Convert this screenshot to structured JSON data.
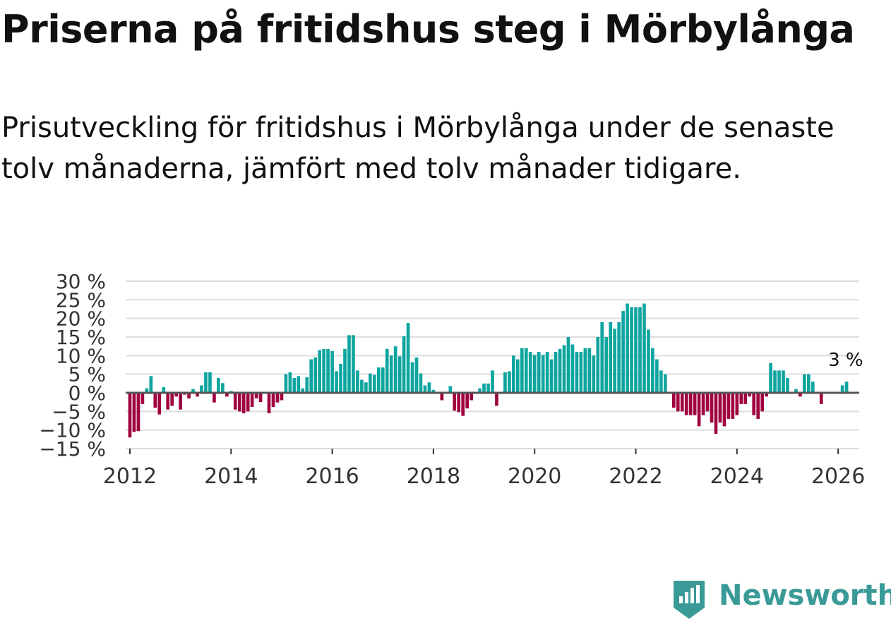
{
  "header": {
    "title": "Priserna på fritidshus steg i Mörbylånga",
    "subtitle": "Prisutveckling för fritidshus i Mörbylånga under de senaste tolv månaderna, jämfört med tolv månader tidigare."
  },
  "brand": {
    "name": "Newsworthy",
    "color": "#3a9a97",
    "icon": "newsworthy-logo-icon"
  },
  "chart_data": {
    "type": "bar",
    "title": "Priserna på fritidshus steg i Mörbylånga",
    "subtitle": "Prisutveckling för fritidshus i Mörbylånga under de senaste tolv månaderna, jämfört med tolv månader tidigare.",
    "xlabel": "",
    "ylabel": "",
    "ylim": [
      -15,
      30
    ],
    "yticks": [
      -15,
      -10,
      -5,
      0,
      5,
      10,
      15,
      20,
      25,
      30
    ],
    "ytick_labels": [
      "−15 %",
      "−10 %",
      "−5 %",
      "0 %",
      "5 %",
      "10 %",
      "15 %",
      "20 %",
      "25 %",
      "30 %"
    ],
    "xlim": [
      "2011-12",
      "2026-06"
    ],
    "xticks": [
      "2012",
      "2014",
      "2016",
      "2018",
      "2020",
      "2022",
      "2024",
      "2026"
    ],
    "grid": true,
    "colors": {
      "positive": "#0ea59f",
      "negative": "#a0003f",
      "grid": "#dddddd",
      "zero": "#555555"
    },
    "annotation": {
      "text": "3 %",
      "month": "2026-02"
    },
    "series": [
      {
        "start": "2012-01",
        "values": [
          -12,
          -10.5,
          -10.3,
          -3,
          1.2,
          4.5,
          -4,
          -5.8,
          1.5,
          -4.5,
          -3.5,
          -1,
          -4.5,
          -0.5,
          -1.5,
          1,
          -1,
          2,
          5.5,
          5.5,
          -2.6,
          4,
          2.6,
          -1,
          0.5,
          -4.5,
          -5,
          -5.5,
          -5,
          -3.8,
          -1.5,
          -2.5,
          0,
          -5.5,
          -3.8,
          -2.6,
          -2,
          5,
          5.5,
          4,
          4.5,
          1.2,
          4.2,
          9,
          9.5,
          11.5,
          11.8,
          11.8,
          11.2,
          5.8,
          7.8,
          11.8,
          15.5,
          15.5,
          6,
          3.5,
          2.8,
          5.2,
          4.8,
          6.8,
          6.8,
          11.8,
          10,
          12.5,
          9.8,
          15.2,
          18.8,
          8.2,
          9.5,
          5.2,
          2,
          2.8,
          0.8,
          0,
          -2,
          0,
          1.8,
          -4.8,
          -5.2,
          -6.2,
          -4.2,
          -2,
          0,
          1.2,
          2.5,
          2.5,
          6,
          -3.5,
          0,
          5.5,
          5.8,
          10,
          9,
          12,
          12,
          11,
          10.2,
          11,
          10.2,
          11,
          9,
          11,
          11.8,
          12.8,
          15,
          13,
          11,
          11,
          12,
          12,
          10,
          15,
          19,
          15,
          19,
          17.2,
          19,
          22,
          24,
          23,
          23,
          23,
          24,
          17,
          12,
          9,
          6,
          5,
          0,
          -4,
          -5,
          -5,
          -6,
          -6,
          -6,
          -9,
          -6,
          -5,
          -8,
          -11,
          -8,
          -9,
          -7,
          -7,
          -6,
          -3,
          -3,
          -1,
          -6,
          -7,
          -5,
          -1,
          8,
          6,
          6,
          6,
          4,
          0,
          1,
          -1,
          5,
          5,
          3,
          0,
          -3,
          0,
          0,
          0,
          0,
          2,
          3
        ]
      }
    ]
  }
}
